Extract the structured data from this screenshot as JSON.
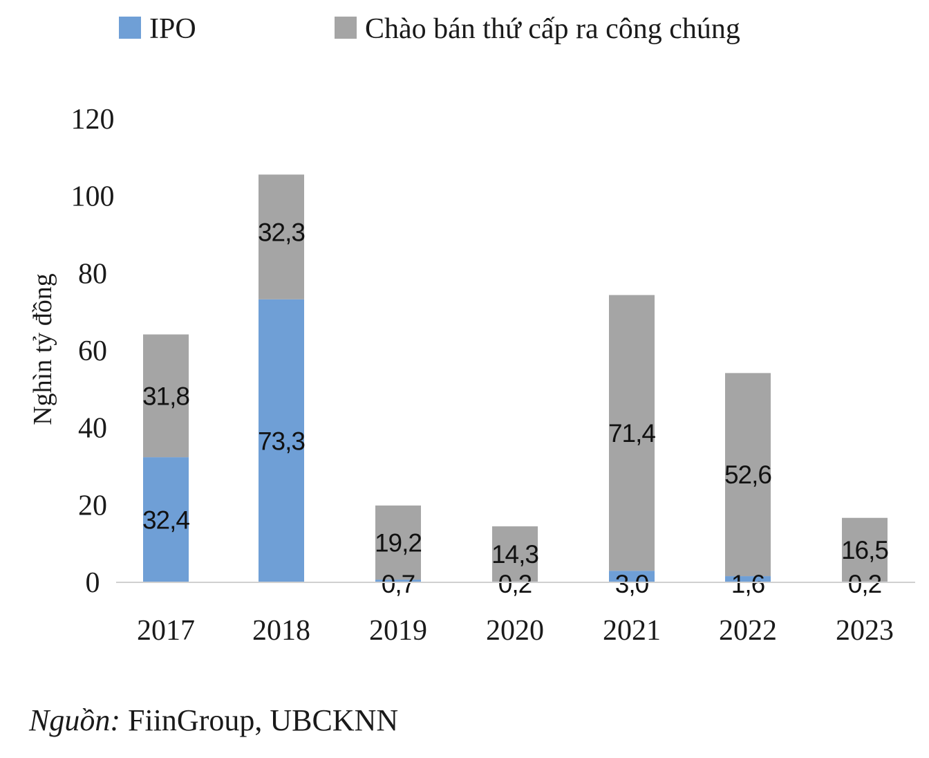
{
  "chart_data": {
    "type": "bar",
    "stacked": true,
    "categories": [
      "2017",
      "2018",
      "2019",
      "2020",
      "2021",
      "2022",
      "2023"
    ],
    "series": [
      {
        "name": "IPO",
        "values": [
          32.4,
          73.3,
          0.7,
          0.2,
          3.0,
          1.6,
          0.2
        ],
        "labels": [
          "32,4",
          "73,3",
          "0,7",
          "0,2",
          "3,0",
          "1,6",
          "0,2"
        ],
        "color": "#6f9fd6"
      },
      {
        "name": "Chào bán thứ cấp ra công chúng",
        "values": [
          31.8,
          32.3,
          19.2,
          14.3,
          71.4,
          52.6,
          16.5
        ],
        "labels": [
          "31,8",
          "32,3",
          "19,2",
          "14,3",
          "71,4",
          "52,6",
          "16,5"
        ],
        "color": "#a5a5a5"
      }
    ],
    "ylabel": "Nghìn tỷ đồng",
    "ylim": [
      0,
      120
    ],
    "yticks": [
      "0",
      "20",
      "40",
      "60",
      "80",
      "100",
      "120"
    ],
    "grid": false,
    "legend_position": "top"
  },
  "source": {
    "label": "Nguồn:",
    "text": " FiinGroup, UBCKNN"
  }
}
